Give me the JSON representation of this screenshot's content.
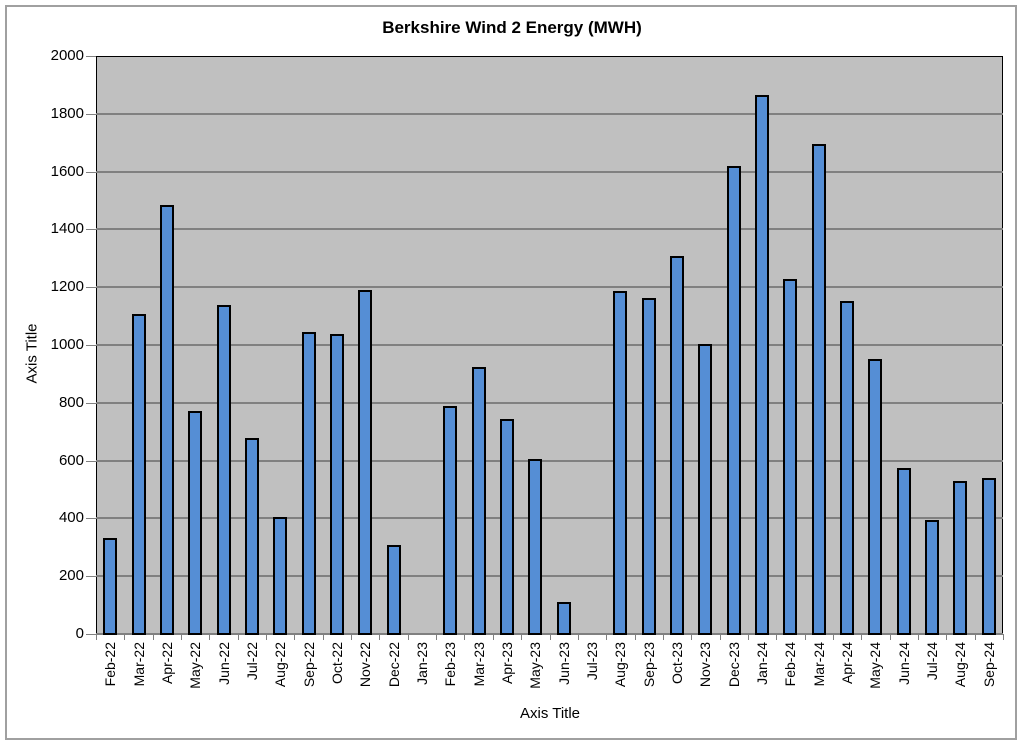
{
  "chart_data": {
    "type": "bar",
    "title": "Berkshire Wind 2 Energy (MWH)",
    "xlabel": "Axis Title",
    "ylabel": "Axis Title",
    "ylim": [
      0,
      2000
    ],
    "yticks": [
      0,
      200,
      400,
      600,
      800,
      1000,
      1200,
      1400,
      1600,
      1800,
      2000
    ],
    "grid": true,
    "legend": null,
    "colors": {
      "bar_fill": "#558ed5",
      "bar_edge": "#000000",
      "plot_bg": "#c0c0c0",
      "gridline": "#808080"
    },
    "categories": [
      "Feb-22",
      "Mar-22",
      "Apr-22",
      "May-22",
      "Jun-22",
      "Jul-22",
      "Aug-22",
      "Sep-22",
      "Oct-22",
      "Nov-22",
      "Dec-22",
      "Jan-23",
      "Feb-23",
      "Mar-23",
      "Apr-23",
      "May-23",
      "Jun-23",
      "Jul-23",
      "Aug-23",
      "Sep-23",
      "Oct-23",
      "Nov-23",
      "Dec-23",
      "Jan-24",
      "Feb-24",
      "Mar-24",
      "Apr-24",
      "May-24",
      "Jun-24",
      "Jul-24",
      "Aug-24",
      "Sep-24"
    ],
    "values": [
      332,
      1107,
      1484,
      772,
      1138,
      678,
      405,
      1045,
      1038,
      1190,
      308,
      0,
      789,
      924,
      744,
      606,
      111,
      0,
      1187,
      1163,
      1308,
      1003,
      1619,
      1865,
      1228,
      1695,
      1152,
      952,
      574,
      395,
      529,
      540
    ]
  }
}
